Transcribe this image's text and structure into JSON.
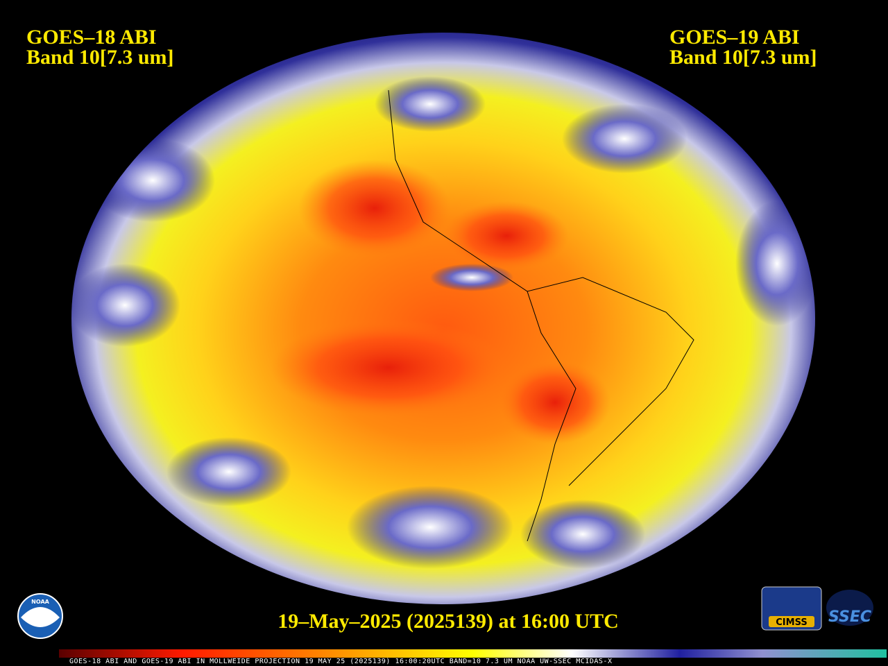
{
  "header": {
    "left": {
      "line1": "GOES–18 ABI",
      "line2": "Band 10[7.3 um]"
    },
    "right": {
      "line1": "GOES–19 ABI",
      "line2": "Band 10[7.3 um]"
    }
  },
  "caption": "19–May–2025 (2025139) at 16:00 UTC",
  "footer": "GOES-18 ABI AND GOES-19 ABI IN MOLLWEIDE PROJECTION 19 MAY 25 (2025139) 16:00:20UTC BAND=10 7.3 UM NOAA UW-SSEC MCIDAS-X",
  "logos": {
    "noaa": "NOAA",
    "cimss": "CIMSS",
    "ssec": "SSEC"
  }
}
